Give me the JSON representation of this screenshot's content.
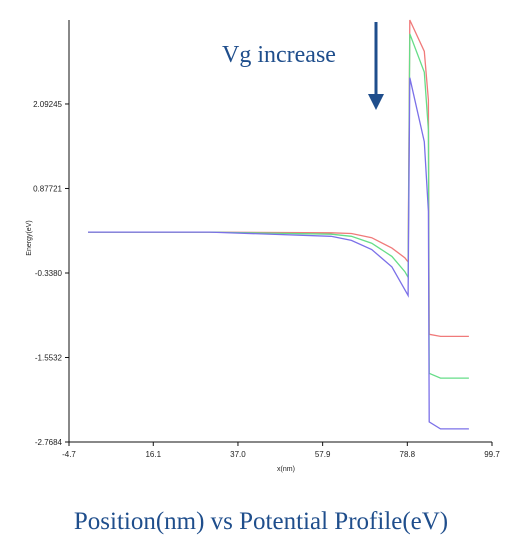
{
  "caption": "Position(nm) vs Potential Profile(eV)",
  "colors": {
    "red": "#f07a7a",
    "green": "#66dd88",
    "blue": "#7b70e8",
    "annotation": "#1f4e8c",
    "axis": "#111111"
  },
  "chart_data": {
    "type": "line",
    "title": "",
    "xlabel": "x(nm)",
    "ylabel": "Energy(eV)",
    "xlim": [
      -4.7,
      99.7
    ],
    "ylim": [
      -2.7684,
      3.3
    ],
    "xticks": [
      "-4.7",
      "16.1",
      "37.0",
      "57.9",
      "78.8",
      "99.7"
    ],
    "xtick_values": [
      -4.7,
      16.1,
      37.0,
      57.9,
      78.8,
      99.7
    ],
    "yticks": [
      "2.09245",
      "0.87721",
      "-0.3380",
      "-1.5532",
      "-2.7684"
    ],
    "ytick_values": [
      2.09245,
      0.87721,
      -0.338,
      -1.5532,
      -2.7684
    ],
    "grid": false,
    "annotation": {
      "text": "Vg increase",
      "arrow": "down"
    },
    "series": [
      {
        "color": "red",
        "x": [
          0,
          30,
          60,
          65,
          70,
          75,
          78.2,
          79.0,
          79.4,
          83.0,
          84.0,
          84.2,
          87.0,
          94.0
        ],
        "y": [
          0.25,
          0.25,
          0.24,
          0.23,
          0.17,
          0.02,
          -0.12,
          -0.18,
          3.3,
          2.85,
          2.15,
          -1.22,
          -1.25,
          -1.25
        ]
      },
      {
        "color": "green",
        "x": [
          0,
          30,
          60,
          65,
          70,
          75,
          78.2,
          79.0,
          79.4,
          83.0,
          84.0,
          84.2,
          87.0,
          94.0
        ],
        "y": [
          0.25,
          0.25,
          0.22,
          0.19,
          0.09,
          -0.1,
          -0.32,
          -0.4,
          3.1,
          2.55,
          1.72,
          -1.78,
          -1.85,
          -1.85
        ]
      },
      {
        "color": "blue",
        "x": [
          0,
          30,
          60,
          65,
          70,
          75,
          78.2,
          79.0,
          79.4,
          83.0,
          84.0,
          84.2,
          87.0,
          94.0
        ],
        "y": [
          0.25,
          0.25,
          0.19,
          0.13,
          0.0,
          -0.25,
          -0.58,
          -0.66,
          2.47,
          1.55,
          0.55,
          -2.48,
          -2.58,
          -2.58
        ]
      }
    ]
  }
}
